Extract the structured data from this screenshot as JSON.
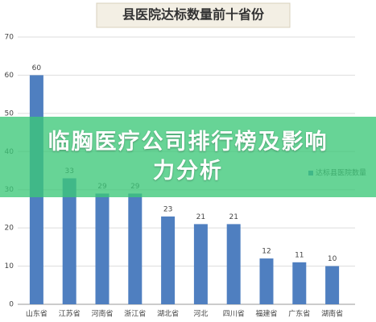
{
  "chart_data": {
    "type": "bar",
    "title": "县医院达标数量前十省份",
    "categories": [
      "山东省",
      "江苏省",
      "河南省",
      "浙江省",
      "湖北省",
      "河北",
      "四川省",
      "福建省",
      "广东省",
      "湖南省"
    ],
    "series": [
      {
        "name": "达标县医院数量",
        "color": "#4f7fc0",
        "values": [
          60,
          33,
          29,
          29,
          23,
          21,
          21,
          12,
          11,
          10
        ]
      }
    ],
    "ylim": [
      0,
      70
    ],
    "yticks": [
      0,
      10,
      20,
      30,
      40,
      50,
      60,
      70
    ],
    "grid": true,
    "legend": "right"
  },
  "banner": "临胸医疗公司排行榜及影响力分析"
}
